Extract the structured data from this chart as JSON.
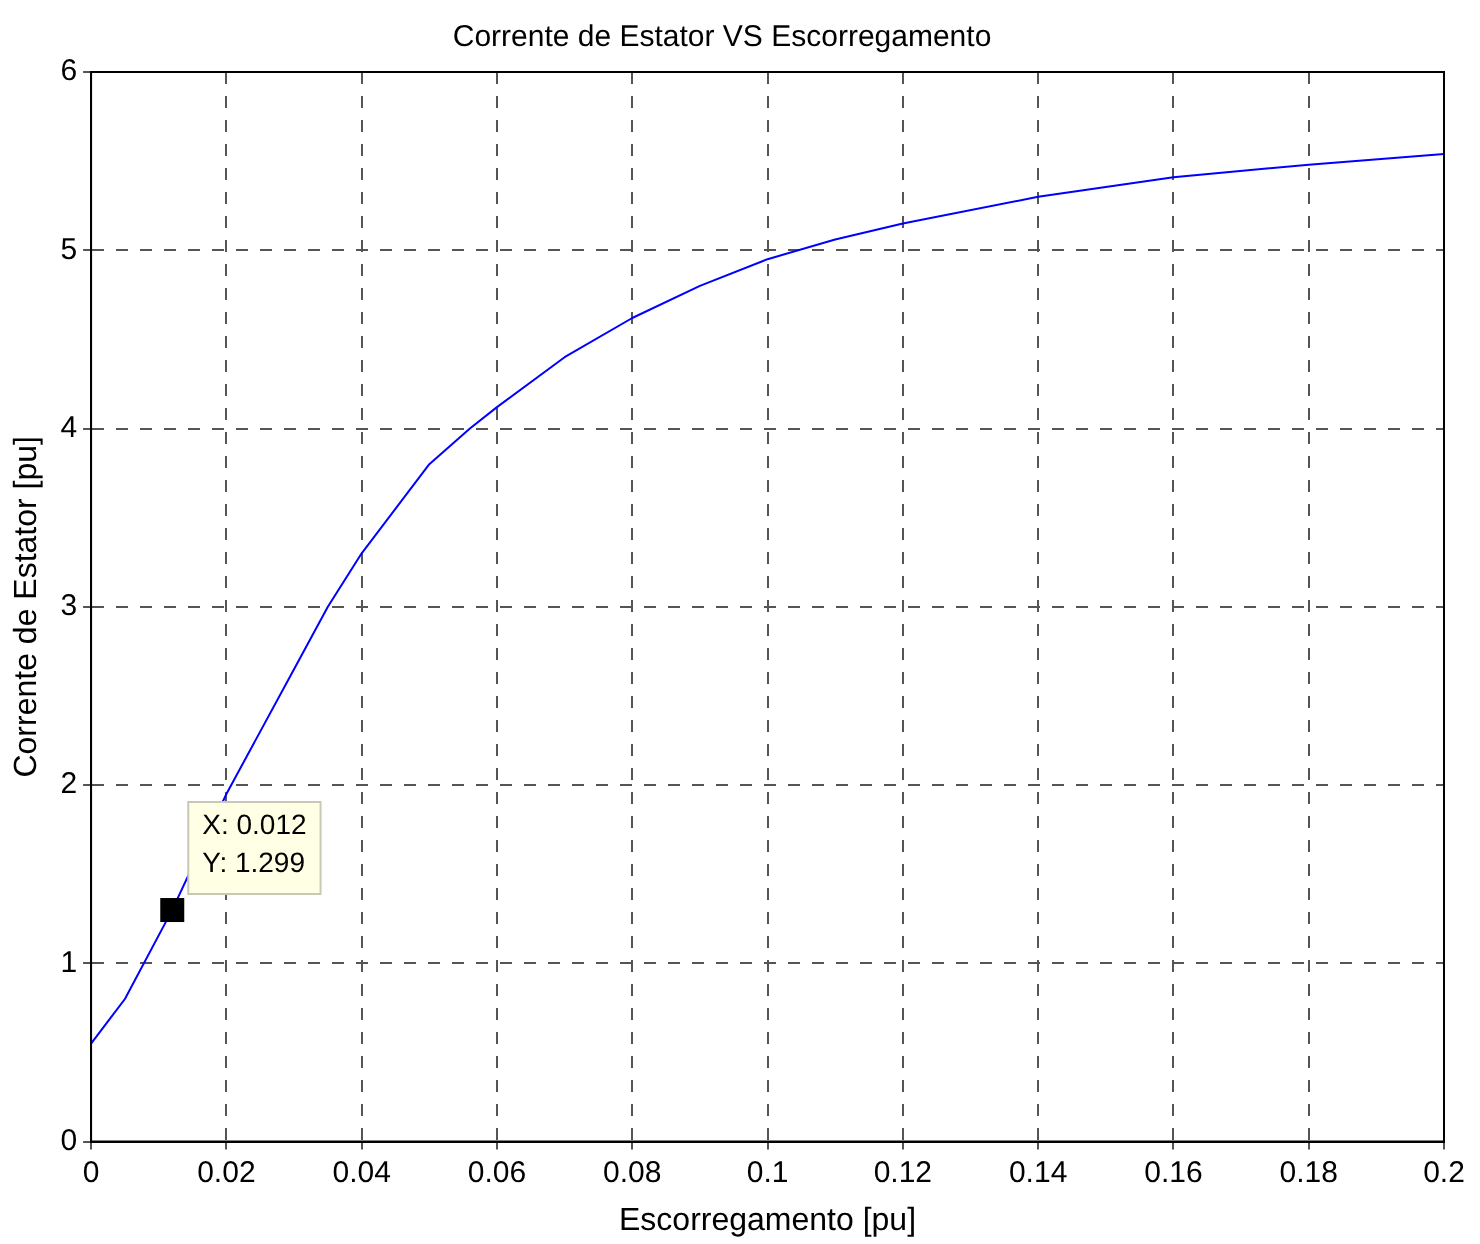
{
  "chart_data": {
    "type": "line",
    "title": "Corrente de Estator VS Escorregamento",
    "xlabel": "Escorregamento [pu]",
    "ylabel": "Corrente de Estator [pu]",
    "x": [
      0,
      0.005,
      0.012,
      0.02,
      0.03,
      0.035,
      0.04,
      0.05,
      0.056,
      0.06,
      0.07,
      0.08,
      0.09,
      0.1,
      0.11,
      0.12,
      0.14,
      0.16,
      0.18,
      0.2
    ],
    "series": [
      {
        "color": "#0000ff",
        "values": [
          0.55,
          0.8,
          1.3,
          1.95,
          2.65,
          3.0,
          3.3,
          3.8,
          4.0,
          4.12,
          4.4,
          4.62,
          4.8,
          4.95,
          5.06,
          5.15,
          5.3,
          5.41,
          5.48,
          5.54
        ]
      }
    ],
    "xlim": [
      0,
      0.2
    ],
    "xticks": [
      0,
      0.02,
      0.04,
      0.06,
      0.08,
      0.1,
      0.12,
      0.14,
      0.16,
      0.18,
      0.2
    ],
    "ylim": [
      0,
      6
    ],
    "yticks": [
      0,
      1,
      2,
      3,
      4,
      5,
      6
    ],
    "annotations": [
      {
        "text": "X: 0.012\nY: 1.299",
        "x": 0.012,
        "y": 1.299
      }
    ],
    "grid": true,
    "legend": false,
    "marker": "none",
    "line_style": "solid"
  }
}
